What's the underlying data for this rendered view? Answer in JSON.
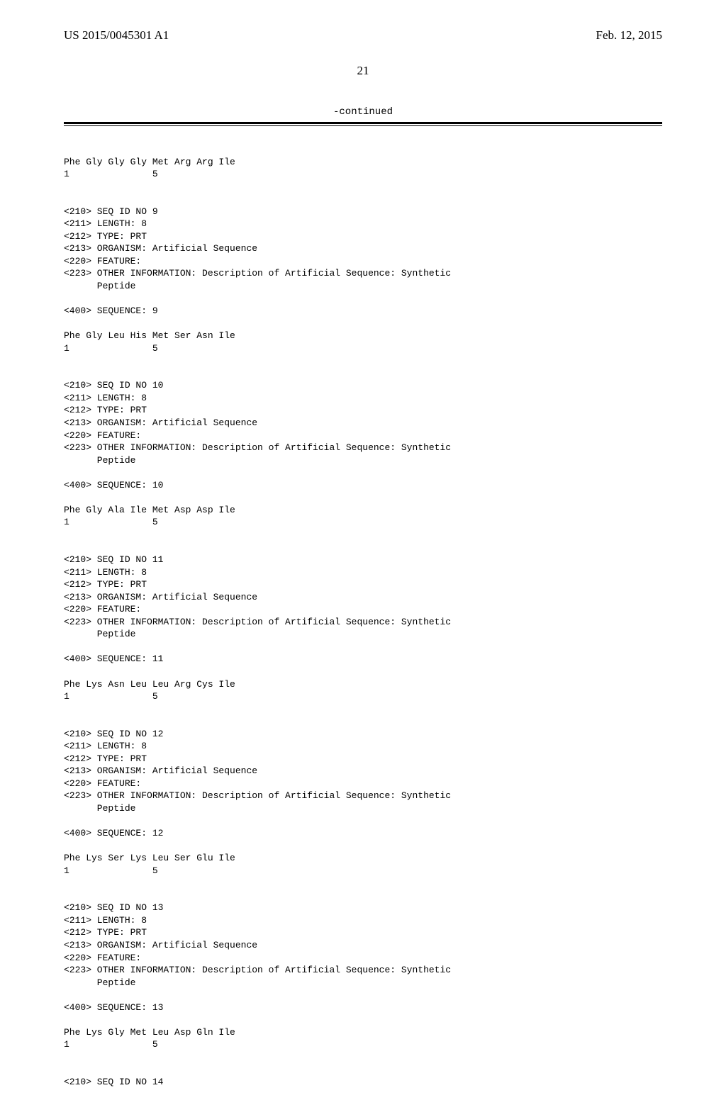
{
  "header": {
    "pub_number": "US 2015/0045301 A1",
    "pub_date": "Feb. 12, 2015"
  },
  "page_number": "21",
  "continued_label": "-continued",
  "seq8": {
    "sequence_line": "Phe Gly Gly Gly Met Arg Arg Ile",
    "index_line": "1               5"
  },
  "seq9": {
    "h210": "<210> SEQ ID NO 9",
    "h211": "<211> LENGTH: 8",
    "h212": "<212> TYPE: PRT",
    "h213": "<213> ORGANISM: Artificial Sequence",
    "h220": "<220> FEATURE:",
    "h223": "<223> OTHER INFORMATION: Description of Artificial Sequence: Synthetic",
    "h223b": "      Peptide",
    "h400": "<400> SEQUENCE: 9",
    "sequence_line": "Phe Gly Leu His Met Ser Asn Ile",
    "index_line": "1               5"
  },
  "seq10": {
    "h210": "<210> SEQ ID NO 10",
    "h211": "<211> LENGTH: 8",
    "h212": "<212> TYPE: PRT",
    "h213": "<213> ORGANISM: Artificial Sequence",
    "h220": "<220> FEATURE:",
    "h223": "<223> OTHER INFORMATION: Description of Artificial Sequence: Synthetic",
    "h223b": "      Peptide",
    "h400": "<400> SEQUENCE: 10",
    "sequence_line": "Phe Gly Ala Ile Met Asp Asp Ile",
    "index_line": "1               5"
  },
  "seq11": {
    "h210": "<210> SEQ ID NO 11",
    "h211": "<211> LENGTH: 8",
    "h212": "<212> TYPE: PRT",
    "h213": "<213> ORGANISM: Artificial Sequence",
    "h220": "<220> FEATURE:",
    "h223": "<223> OTHER INFORMATION: Description of Artificial Sequence: Synthetic",
    "h223b": "      Peptide",
    "h400": "<400> SEQUENCE: 11",
    "sequence_line": "Phe Lys Asn Leu Leu Arg Cys Ile",
    "index_line": "1               5"
  },
  "seq12": {
    "h210": "<210> SEQ ID NO 12",
    "h211": "<211> LENGTH: 8",
    "h212": "<212> TYPE: PRT",
    "h213": "<213> ORGANISM: Artificial Sequence",
    "h220": "<220> FEATURE:",
    "h223": "<223> OTHER INFORMATION: Description of Artificial Sequence: Synthetic",
    "h223b": "      Peptide",
    "h400": "<400> SEQUENCE: 12",
    "sequence_line": "Phe Lys Ser Lys Leu Ser Glu Ile",
    "index_line": "1               5"
  },
  "seq13": {
    "h210": "<210> SEQ ID NO 13",
    "h211": "<211> LENGTH: 8",
    "h212": "<212> TYPE: PRT",
    "h213": "<213> ORGANISM: Artificial Sequence",
    "h220": "<220> FEATURE:",
    "h223": "<223> OTHER INFORMATION: Description of Artificial Sequence: Synthetic",
    "h223b": "      Peptide",
    "h400": "<400> SEQUENCE: 13",
    "sequence_line": "Phe Lys Gly Met Leu Asp Gln Ile",
    "index_line": "1               5"
  },
  "seq14": {
    "h210": "<210> SEQ ID NO 14"
  }
}
